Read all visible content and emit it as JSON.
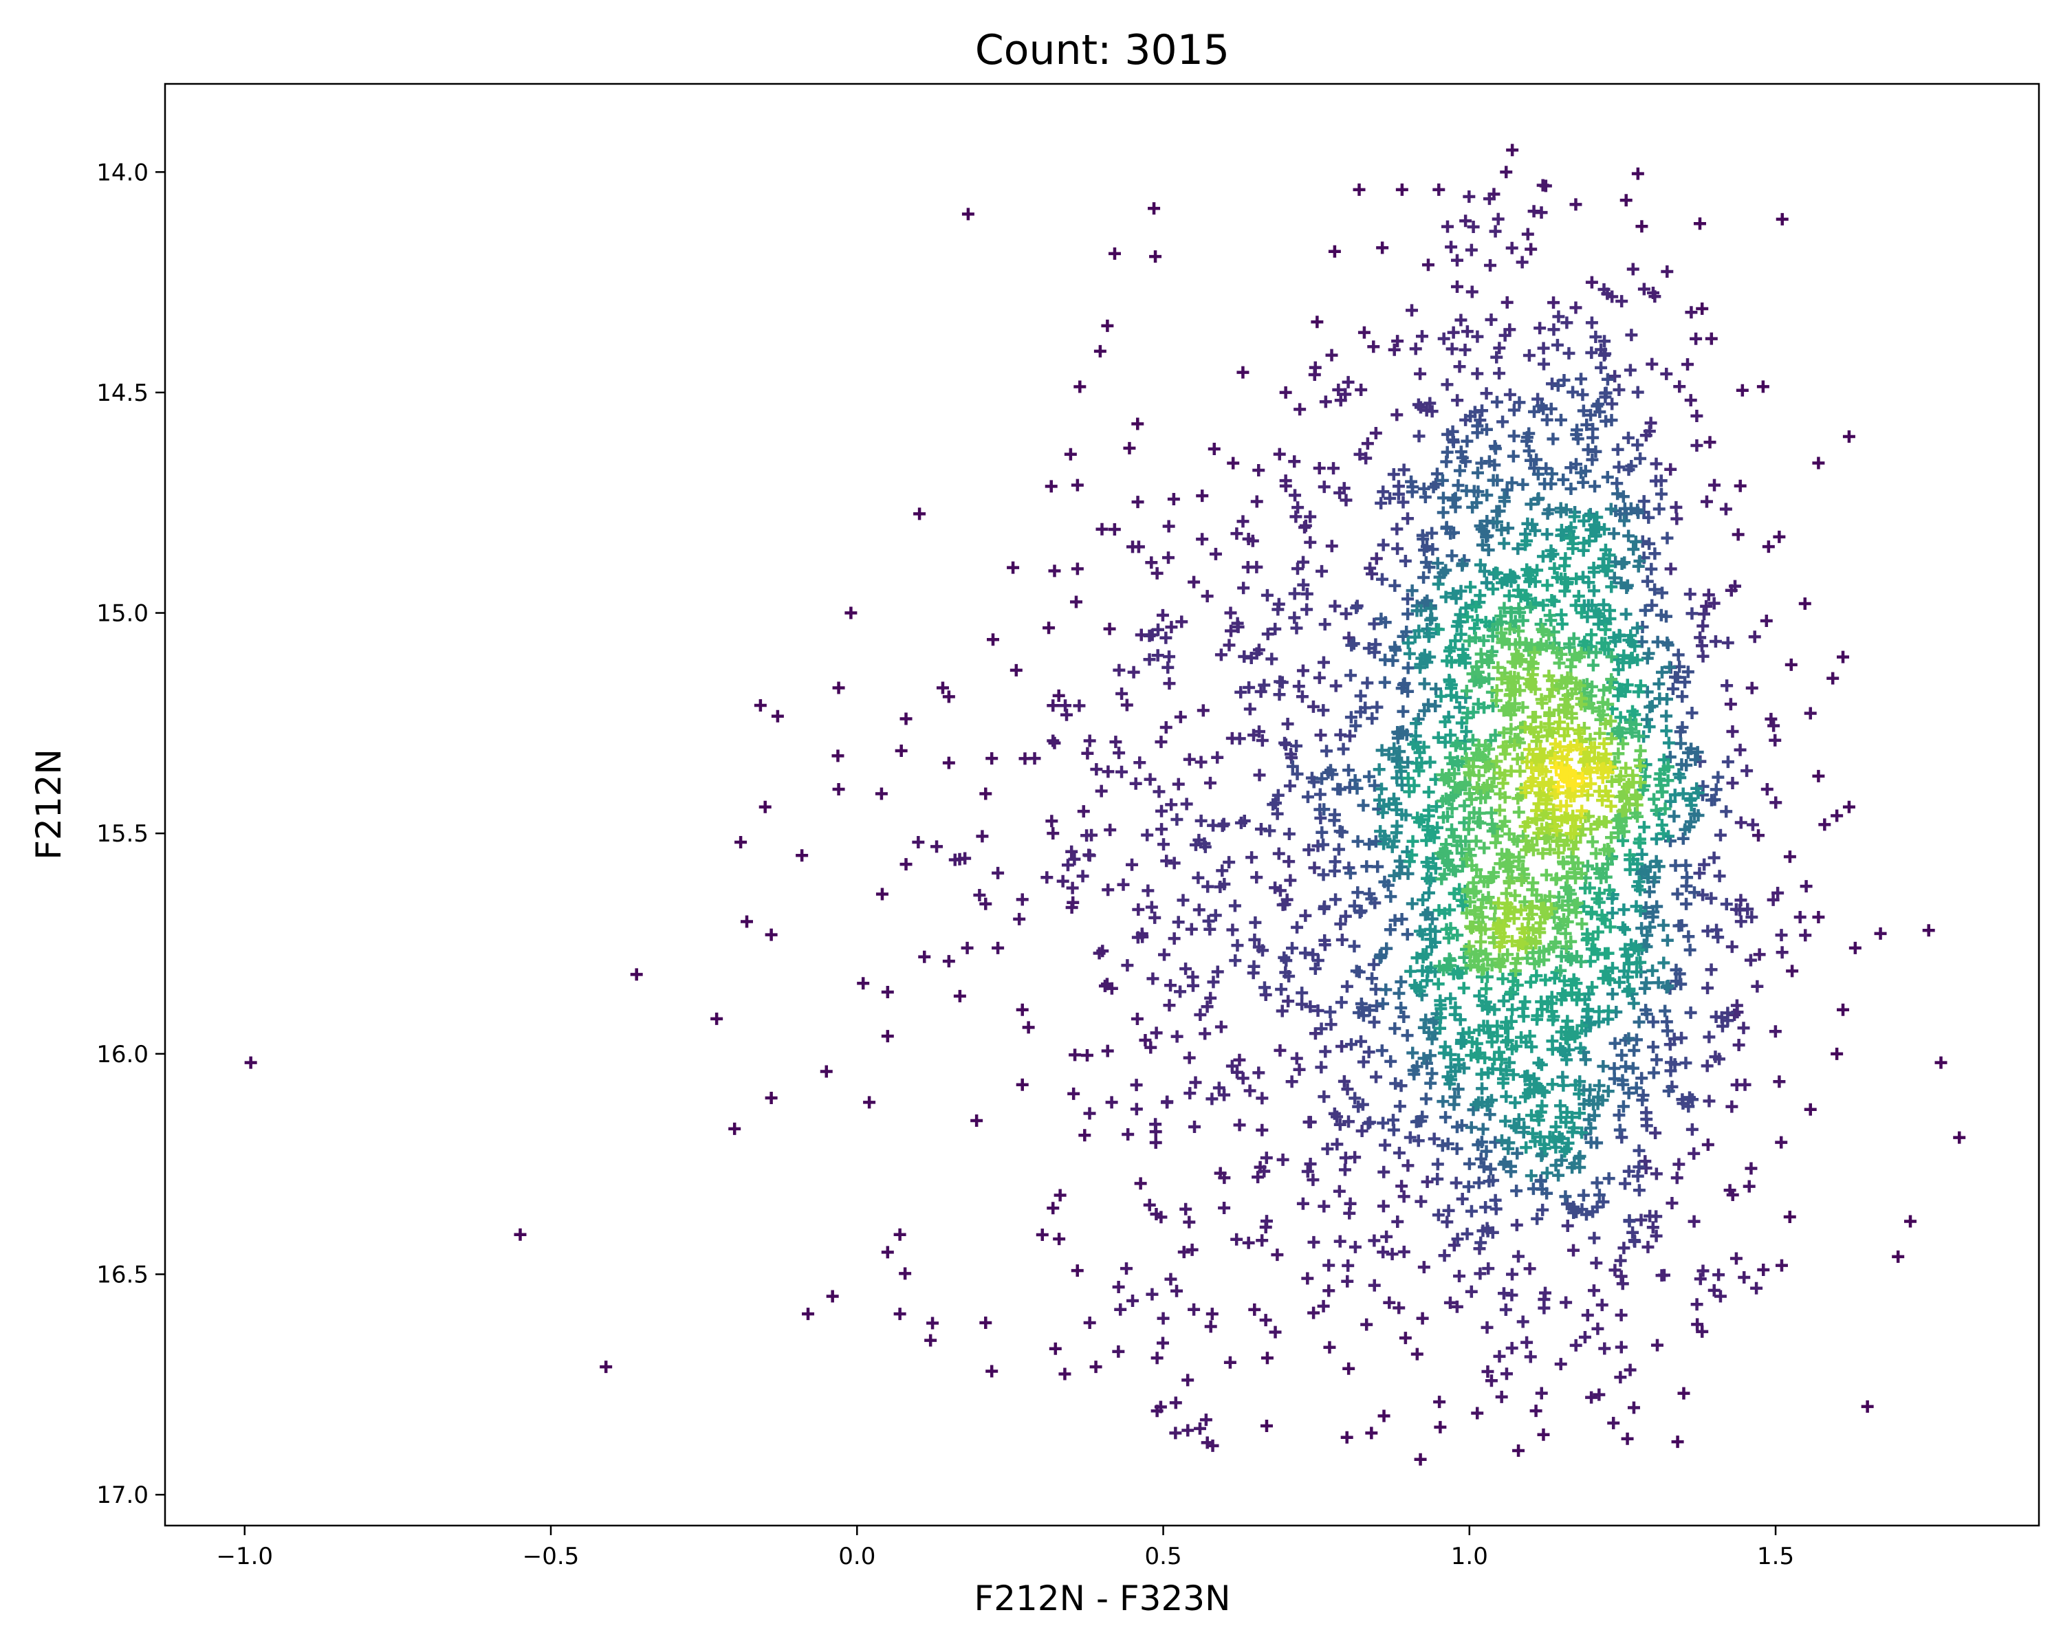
{
  "chart_data": {
    "type": "scatter",
    "title": "Count: 3015",
    "xlabel": "F212N - F323N",
    "ylabel": "F212N",
    "xlim": [
      -1.13,
      1.93
    ],
    "ylim": [
      17.07,
      13.8
    ],
    "y_inverted": true,
    "grid": false,
    "marker": "plus",
    "colormap": "viridis (point density)",
    "colors": {
      "low_density": "#440154",
      "mid_density": "#21918c",
      "high_density": "#fde725"
    },
    "x_ticks": [
      {
        "value": -1.0,
        "label": "−1.0"
      },
      {
        "value": -0.5,
        "label": "−0.5"
      },
      {
        "value": 0.0,
        "label": "0.0"
      },
      {
        "value": 0.5,
        "label": "0.5"
      },
      {
        "value": 1.0,
        "label": "1.0"
      },
      {
        "value": 1.5,
        "label": "1.5"
      }
    ],
    "y_ticks": [
      {
        "value": 14.0,
        "label": "14.0"
      },
      {
        "value": 14.5,
        "label": "14.5"
      },
      {
        "value": 15.0,
        "label": "15.0"
      },
      {
        "value": 15.5,
        "label": "15.5"
      },
      {
        "value": 16.0,
        "label": "16.0"
      },
      {
        "value": 16.5,
        "label": "16.5"
      },
      {
        "value": 17.0,
        "label": "17.0"
      }
    ],
    "point_count": 3015,
    "core_density": {
      "center_x": 1.12,
      "center_y": 15.38,
      "sd_x": 0.15,
      "sd_y": 0.55
    },
    "outlier_points": [
      [
        -0.99,
        16.02
      ],
      [
        -0.55,
        16.41
      ],
      [
        -0.41,
        16.71
      ],
      [
        -0.36,
        15.82
      ],
      [
        -0.2,
        16.17
      ],
      [
        -0.19,
        15.52
      ],
      [
        -0.18,
        15.7
      ],
      [
        -0.15,
        15.44
      ],
      [
        -0.14,
        15.73
      ],
      [
        -0.14,
        16.1
      ],
      [
        -0.09,
        15.55
      ],
      [
        -0.08,
        16.59
      ],
      [
        -0.05,
        16.04
      ],
      [
        -0.04,
        16.55
      ],
      [
        -0.03,
        15.17
      ],
      [
        -0.03,
        15.4
      ],
      [
        -0.01,
        15.0
      ],
      [
        0.01,
        15.84
      ],
      [
        0.02,
        16.11
      ],
      [
        0.04,
        15.41
      ],
      [
        0.05,
        15.86
      ],
      [
        0.05,
        16.45
      ],
      [
        0.05,
        15.96
      ],
      [
        0.07,
        16.41
      ],
      [
        0.07,
        16.59
      ],
      [
        0.08,
        15.57
      ],
      [
        0.08,
        15.24
      ],
      [
        0.1,
        15.52
      ],
      [
        0.11,
        15.78
      ],
      [
        0.12,
        16.65
      ],
      [
        0.13,
        15.53
      ],
      [
        0.14,
        15.17
      ],
      [
        0.15,
        15.34
      ],
      [
        0.15,
        15.19
      ],
      [
        0.15,
        15.79
      ],
      [
        0.16,
        15.56
      ],
      [
        0.18,
        15.76
      ],
      [
        0.2,
        15.64
      ],
      [
        0.21,
        15.66
      ],
      [
        0.21,
        16.61
      ],
      [
        0.21,
        15.41
      ],
      [
        0.22,
        16.72
      ],
      [
        0.22,
        15.33
      ],
      [
        0.23,
        15.76
      ],
      [
        0.23,
        15.59
      ],
      [
        0.26,
        15.13
      ],
      [
        0.27,
        15.65
      ],
      [
        0.27,
        15.9
      ],
      [
        0.27,
        16.07
      ],
      [
        0.28,
        15.94
      ],
      [
        0.29,
        15.33
      ],
      [
        0.31,
        15.6
      ],
      [
        0.32,
        15.21
      ],
      [
        0.32,
        15.29
      ],
      [
        0.32,
        15.5
      ],
      [
        0.32,
        16.35
      ],
      [
        0.33,
        16.42
      ],
      [
        0.34,
        15.21
      ],
      [
        0.36,
        14.9
      ],
      [
        0.36,
        14.71
      ],
      [
        0.37,
        15.45
      ],
      [
        0.38,
        16.61
      ],
      [
        0.38,
        15.29
      ],
      [
        0.39,
        16.71
      ],
      [
        0.4,
        14.81
      ],
      [
        0.41,
        15.36
      ],
      [
        0.45,
        14.85
      ],
      [
        0.46,
        14.85
      ],
      [
        0.49,
        14.91
      ],
      [
        0.51,
        15.16
      ],
      [
        0.53,
        15.02
      ],
      [
        0.55,
        14.93
      ],
      [
        0.61,
        15.0
      ],
      [
        0.62,
        14.82
      ],
      [
        0.67,
        14.96
      ],
      [
        0.69,
        14.64
      ],
      [
        0.7,
        14.5
      ],
      [
        0.7,
        14.7
      ],
      [
        0.74,
        14.84
      ],
      [
        0.78,
        14.18
      ],
      [
        0.82,
        14.04
      ],
      [
        0.89,
        14.04
      ],
      [
        0.95,
        14.04
      ],
      [
        0.98,
        14.26
      ],
      [
        0.97,
        14.17
      ],
      [
        1.04,
        14.05
      ],
      [
        1.07,
        13.95
      ],
      [
        1.06,
        14.0
      ],
      [
        1.12,
        14.03
      ],
      [
        1.2,
        14.25
      ],
      [
        1.38,
        14.31
      ],
      [
        1.57,
        14.66
      ],
      [
        1.62,
        14.6
      ],
      [
        1.4,
        14.71
      ],
      [
        1.61,
        15.1
      ],
      [
        1.57,
        15.37
      ],
      [
        1.6,
        15.46
      ],
      [
        1.62,
        15.44
      ],
      [
        1.58,
        15.48
      ],
      [
        1.55,
        15.62
      ],
      [
        1.54,
        15.69
      ],
      [
        1.57,
        15.69
      ],
      [
        1.63,
        15.76
      ],
      [
        1.75,
        15.72
      ],
      [
        1.77,
        16.02
      ],
      [
        1.61,
        15.9
      ],
      [
        1.6,
        16.0
      ],
      [
        1.8,
        16.19
      ],
      [
        1.72,
        16.38
      ],
      [
        1.7,
        16.46
      ],
      [
        1.65,
        16.8
      ],
      [
        1.51,
        16.48
      ],
      [
        1.48,
        16.49
      ],
      [
        1.46,
        16.26
      ],
      [
        1.45,
        16.07
      ],
      [
        1.44,
        15.98
      ],
      [
        1.43,
        16.32
      ],
      [
        1.41,
        16.55
      ],
      [
        1.38,
        16.63
      ],
      [
        1.35,
        16.77
      ],
      [
        1.34,
        16.88
      ],
      [
        1.08,
        16.9
      ],
      [
        0.92,
        16.92
      ],
      [
        0.8,
        16.87
      ],
      [
        0.84,
        16.86
      ],
      [
        0.52,
        16.86
      ],
      [
        0.56,
        16.85
      ],
      [
        0.57,
        16.83
      ],
      [
        0.49,
        16.81
      ],
      [
        0.54,
        16.74
      ],
      [
        0.49,
        16.69
      ],
      [
        0.43,
        16.58
      ],
      [
        0.45,
        16.56
      ],
      [
        0.55,
        16.58
      ],
      [
        0.58,
        16.59
      ],
      [
        0.67,
        16.69
      ],
      [
        0.5,
        16.6
      ]
    ]
  }
}
